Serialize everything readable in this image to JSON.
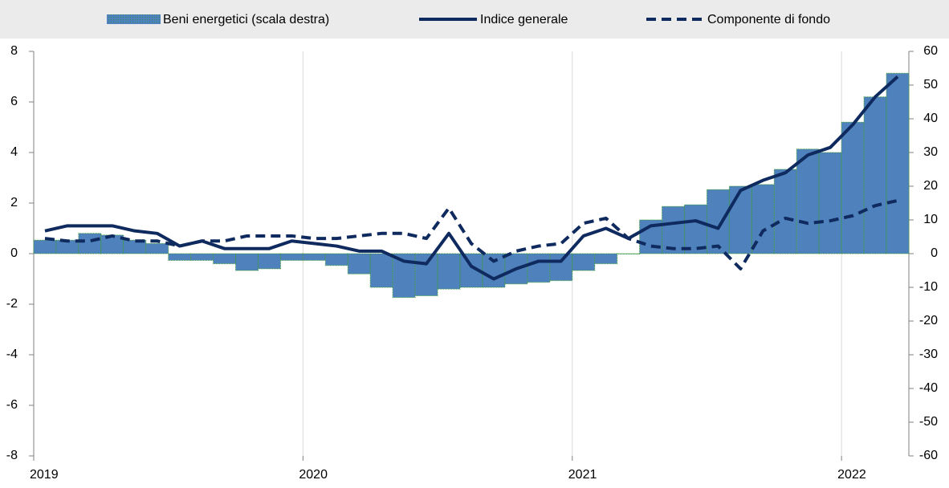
{
  "chart_data": {
    "type": "combo",
    "categories": [
      "2019",
      null,
      null,
      null,
      null,
      null,
      null,
      null,
      null,
      null,
      null,
      null,
      "2020",
      null,
      null,
      null,
      null,
      null,
      null,
      null,
      null,
      null,
      null,
      null,
      "2021",
      null,
      null,
      null,
      null,
      null,
      null,
      null,
      null,
      null,
      null,
      null,
      "2022",
      null,
      null
    ],
    "series": [
      {
        "name": "Beni energetici (scala destra)",
        "type": "bar",
        "axis": "y2",
        "color": "#4f81bd",
        "values": [
          4,
          4,
          6,
          5.5,
          4,
          3,
          -2,
          -2,
          -3,
          -5,
          -4.5,
          -2,
          -2,
          -3.5,
          -6,
          -10,
          -13,
          -12.5,
          -10.5,
          -10,
          -10,
          -9,
          -8.5,
          -8,
          -5,
          -3,
          0,
          10,
          14,
          14.5,
          19,
          20,
          20.5,
          25,
          31,
          30,
          39,
          46.5,
          53.5
        ]
      },
      {
        "name": "Indice generale",
        "type": "line",
        "color": "#0f2a5e",
        "values": [
          0.9,
          1.1,
          1.1,
          1.1,
          0.9,
          0.8,
          0.3,
          0.5,
          0.2,
          0.2,
          0.2,
          0.5,
          0.4,
          0.3,
          0.1,
          0.1,
          -0.3,
          -0.4,
          0.8,
          -0.5,
          -1.0,
          -0.6,
          -0.3,
          -0.3,
          0.7,
          1.0,
          0.6,
          1.1,
          1.2,
          1.3,
          1.0,
          2.5,
          2.9,
          3.2,
          3.9,
          4.2,
          5.1,
          6.2,
          7.0
        ]
      },
      {
        "name": "Componente di fondo",
        "type": "line",
        "dash": true,
        "color": "#0f2a5e",
        "values": [
          0.6,
          0.5,
          0.5,
          0.7,
          0.5,
          0.5,
          0.3,
          0.5,
          0.5,
          0.7,
          0.7,
          0.7,
          0.6,
          0.6,
          0.7,
          0.8,
          0.8,
          0.6,
          1.8,
          0.4,
          -0.3,
          0.1,
          0.3,
          0.4,
          1.2,
          1.4,
          0.6,
          0.3,
          0.2,
          0.2,
          0.3,
          -0.6,
          0.9,
          1.4,
          1.2,
          1.3,
          1.5,
          1.9,
          2.1
        ]
      }
    ],
    "ylim": [
      -8,
      8
    ],
    "yticks": [
      -8,
      -6,
      -4,
      -2,
      0,
      2,
      4,
      6,
      8
    ],
    "y2lim": [
      -60,
      60
    ],
    "y2ticks": [
      -60,
      -50,
      -40,
      -30,
      -20,
      -10,
      0,
      10,
      20,
      30,
      40,
      50,
      60
    ],
    "grid": true,
    "legend": "top"
  }
}
